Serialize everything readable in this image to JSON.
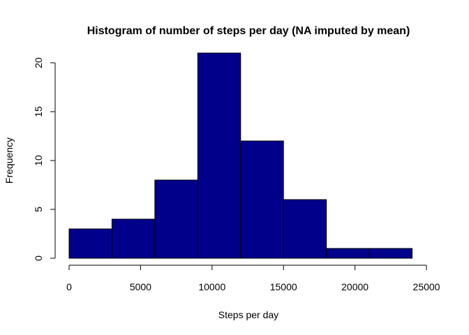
{
  "chart_data": {
    "type": "bar",
    "title": "Histogram of number of steps per day (NA imputed by mean)",
    "xlabel": "Steps per day",
    "ylabel": "Frequency",
    "bins": [
      {
        "start": 0,
        "end": 3000,
        "count": 3
      },
      {
        "start": 3000,
        "end": 6000,
        "count": 4
      },
      {
        "start": 6000,
        "end": 9000,
        "count": 8
      },
      {
        "start": 9000,
        "end": 12000,
        "count": 21
      },
      {
        "start": 12000,
        "end": 15000,
        "count": 12
      },
      {
        "start": 15000,
        "end": 18000,
        "count": 6
      },
      {
        "start": 18000,
        "end": 21000,
        "count": 1
      },
      {
        "start": 21000,
        "end": 24000,
        "count": 1
      }
    ],
    "xlim": [
      0,
      25000
    ],
    "ylim": [
      0,
      21
    ],
    "xticks": [
      "0",
      "5000",
      "10000",
      "15000",
      "20000",
      "25000"
    ],
    "yticks": [
      "0",
      "5",
      "10",
      "15",
      "20"
    ],
    "bar_color": "#00008B",
    "border_color": "#000000",
    "grid": false,
    "legend": "none"
  }
}
